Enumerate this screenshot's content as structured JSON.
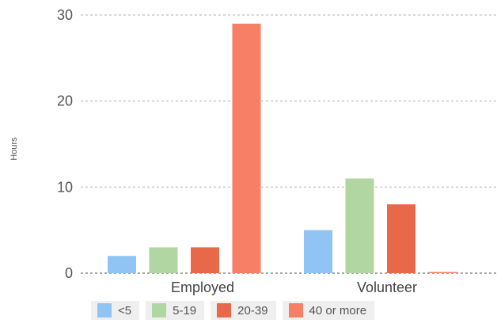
{
  "chart_data": {
    "type": "bar",
    "title": "",
    "xlabel": "",
    "ylabel": "Hours",
    "ylim": [
      0,
      30
    ],
    "yticks": [
      "0",
      "10",
      "20",
      "30"
    ],
    "grid": true,
    "legend_position": "bottom",
    "categories": [
      "Employed",
      "Volunteer"
    ],
    "series": [
      {
        "name": "<5",
        "color": "#90c4f5",
        "values": [
          2,
          5
        ]
      },
      {
        "name": "5-19",
        "color": "#b2d6a2",
        "values": [
          3,
          11
        ]
      },
      {
        "name": "20-39",
        "color": "#e8684a",
        "values": [
          3,
          8
        ]
      },
      {
        "name": "40 or more",
        "color": "#f77f66",
        "values": [
          29,
          0
        ]
      }
    ]
  }
}
